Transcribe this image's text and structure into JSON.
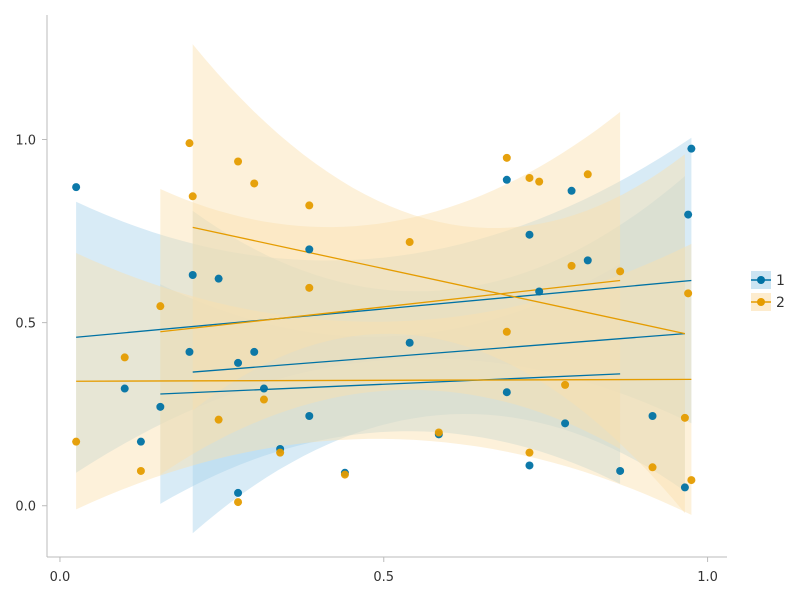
{
  "chart_data": {
    "type": "scatter",
    "title": "",
    "xlabel": "",
    "ylabel": "",
    "xlim": [
      -0.02,
      1.03
    ],
    "ylim": [
      -0.14,
      1.34
    ],
    "xticks": [
      0.0,
      0.5,
      1.0
    ],
    "xtick_labels": [
      "0.0",
      "0.5",
      "1.0"
    ],
    "yticks": [
      0.0,
      0.5,
      1.0
    ],
    "ytick_labels": [
      "0.0",
      "0.5",
      "1.0"
    ],
    "grid": false,
    "legend_position": "right",
    "series": [
      {
        "name": "1",
        "color": "#0072a4",
        "band_color": "#a9d2ea",
        "points": [
          {
            "x": 0.025,
            "y": 0.87
          },
          {
            "x": 0.1,
            "y": 0.32
          },
          {
            "x": 0.125,
            "y": 0.175
          },
          {
            "x": 0.155,
            "y": 0.27
          },
          {
            "x": 0.2,
            "y": 0.42
          },
          {
            "x": 0.205,
            "y": 0.63
          },
          {
            "x": 0.245,
            "y": 0.62
          },
          {
            "x": 0.275,
            "y": 0.035
          },
          {
            "x": 0.275,
            "y": 0.39
          },
          {
            "x": 0.3,
            "y": 0.42
          },
          {
            "x": 0.315,
            "y": 0.32
          },
          {
            "x": 0.34,
            "y": 0.155
          },
          {
            "x": 0.385,
            "y": 0.245
          },
          {
            "x": 0.385,
            "y": 0.7
          },
          {
            "x": 0.44,
            "y": 0.09
          },
          {
            "x": 0.54,
            "y": 0.445
          },
          {
            "x": 0.585,
            "y": 0.195
          },
          {
            "x": 0.69,
            "y": 0.31
          },
          {
            "x": 0.69,
            "y": 0.89
          },
          {
            "x": 0.725,
            "y": 0.11
          },
          {
            "x": 0.725,
            "y": 0.74
          },
          {
            "x": 0.74,
            "y": 0.585
          },
          {
            "x": 0.78,
            "y": 0.225
          },
          {
            "x": 0.79,
            "y": 0.86
          },
          {
            "x": 0.815,
            "y": 0.67
          },
          {
            "x": 0.865,
            "y": 0.095
          },
          {
            "x": 0.915,
            "y": 0.245
          },
          {
            "x": 0.965,
            "y": 0.05
          },
          {
            "x": 0.97,
            "y": 0.795
          },
          {
            "x": 0.975,
            "y": 0.975
          }
        ],
        "fits": [
          {
            "x_range": [
              0.025,
              0.975
            ],
            "y_range": [
              0.46,
              0.615
            ],
            "band_halfwidth_end": [
              0.37,
              0.39
            ],
            "band_halfwidth_mid": 0.14
          },
          {
            "x_range": [
              0.155,
              0.865
            ],
            "y_range": [
              0.305,
              0.36
            ],
            "band_halfwidth_end": [
              0.3,
              0.3
            ],
            "band_halfwidth_mid": 0.13
          },
          {
            "x_range": [
              0.205,
              0.965
            ],
            "y_range": [
              0.365,
              0.47
            ],
            "band_halfwidth_end": [
              0.44,
              0.43
            ],
            "band_halfwidth_mid": 0.17
          }
        ]
      },
      {
        "name": "2",
        "color": "#e59c00",
        "band_color": "#fbe0ad",
        "points": [
          {
            "x": 0.025,
            "y": 0.175
          },
          {
            "x": 0.1,
            "y": 0.405
          },
          {
            "x": 0.125,
            "y": 0.095
          },
          {
            "x": 0.155,
            "y": 0.545
          },
          {
            "x": 0.2,
            "y": 0.99
          },
          {
            "x": 0.205,
            "y": 0.845
          },
          {
            "x": 0.245,
            "y": 0.235
          },
          {
            "x": 0.275,
            "y": 0.01
          },
          {
            "x": 0.275,
            "y": 0.94
          },
          {
            "x": 0.3,
            "y": 0.88
          },
          {
            "x": 0.315,
            "y": 0.29
          },
          {
            "x": 0.34,
            "y": 0.145
          },
          {
            "x": 0.385,
            "y": 0.595
          },
          {
            "x": 0.385,
            "y": 0.82
          },
          {
            "x": 0.44,
            "y": 0.085
          },
          {
            "x": 0.54,
            "y": 0.72
          },
          {
            "x": 0.585,
            "y": 0.2
          },
          {
            "x": 0.69,
            "y": 0.475
          },
          {
            "x": 0.69,
            "y": 0.95
          },
          {
            "x": 0.725,
            "y": 0.145
          },
          {
            "x": 0.725,
            "y": 0.895
          },
          {
            "x": 0.74,
            "y": 0.885
          },
          {
            "x": 0.78,
            "y": 0.33
          },
          {
            "x": 0.79,
            "y": 0.655
          },
          {
            "x": 0.815,
            "y": 0.905
          },
          {
            "x": 0.865,
            "y": 0.64
          },
          {
            "x": 0.915,
            "y": 0.105
          },
          {
            "x": 0.965,
            "y": 0.24
          },
          {
            "x": 0.97,
            "y": 0.58
          },
          {
            "x": 0.975,
            "y": 0.07
          }
        ],
        "fits": [
          {
            "x_range": [
              0.025,
              0.975
            ],
            "y_range": [
              0.34,
              0.345
            ],
            "band_halfwidth_end": [
              0.35,
              0.37
            ],
            "band_halfwidth_mid": 0.16
          },
          {
            "x_range": [
              0.155,
              0.865
            ],
            "y_range": [
              0.475,
              0.615
            ],
            "band_halfwidth_end": [
              0.39,
              0.46
            ],
            "band_halfwidth_mid": 0.23
          },
          {
            "x_range": [
              0.205,
              0.965
            ],
            "y_range": [
              0.76,
              0.47
            ],
            "band_halfwidth_end": [
              0.5,
              0.49
            ],
            "band_halfwidth_mid": 0.16
          }
        ]
      }
    ]
  }
}
